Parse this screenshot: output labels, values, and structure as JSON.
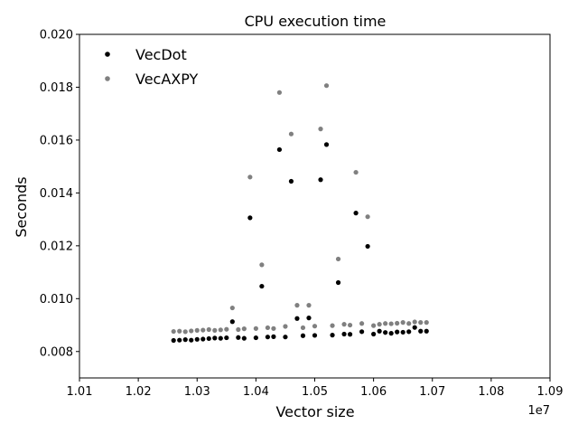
{
  "chart_data": {
    "type": "scatter",
    "title": "CPU execution time",
    "xlabel": "Vector size",
    "ylabel": "Seconds",
    "x_offset_label": "1e7",
    "xlim": [
      1.01,
      1.09
    ],
    "ylim": [
      0.007,
      0.02
    ],
    "xticks": [
      1.01,
      1.02,
      1.03,
      1.04,
      1.05,
      1.06,
      1.07,
      1.08,
      1.09
    ],
    "xtick_labels": [
      "1.01",
      "1.02",
      "1.03",
      "1.04",
      "1.05",
      "1.06",
      "1.07",
      "1.08",
      "1.09"
    ],
    "yticks": [
      0.008,
      0.01,
      0.012,
      0.014,
      0.016,
      0.018,
      0.02
    ],
    "ytick_labels": [
      "0.008",
      "0.010",
      "0.012",
      "0.014",
      "0.016",
      "0.018",
      "0.020"
    ],
    "legend_position": "top-left",
    "grid": false,
    "series": [
      {
        "name": "VecDot",
        "color": "#000000",
        "points": [
          [
            1.026,
            0.00842
          ],
          [
            1.027,
            0.00843
          ],
          [
            1.028,
            0.00845
          ],
          [
            1.029,
            0.00843
          ],
          [
            1.03,
            0.00846
          ],
          [
            1.031,
            0.00847
          ],
          [
            1.032,
            0.00849
          ],
          [
            1.033,
            0.00851
          ],
          [
            1.034,
            0.0085
          ],
          [
            1.035,
            0.00852
          ],
          [
            1.036,
            0.00913
          ],
          [
            1.037,
            0.00853
          ],
          [
            1.038,
            0.0085
          ],
          [
            1.039,
            0.01306
          ],
          [
            1.04,
            0.00852
          ],
          [
            1.041,
            0.01047
          ],
          [
            1.042,
            0.00855
          ],
          [
            1.043,
            0.00856
          ],
          [
            1.044,
            0.01564
          ],
          [
            1.045,
            0.00855
          ],
          [
            1.046,
            0.01444
          ],
          [
            1.047,
            0.00925
          ],
          [
            1.048,
            0.0086
          ],
          [
            1.049,
            0.00927
          ],
          [
            1.05,
            0.00861
          ],
          [
            1.051,
            0.0145
          ],
          [
            1.052,
            0.01583
          ],
          [
            1.053,
            0.00862
          ],
          [
            1.054,
            0.01061
          ],
          [
            1.055,
            0.00866
          ],
          [
            1.056,
            0.00865
          ],
          [
            1.057,
            0.01324
          ],
          [
            1.058,
            0.00875
          ],
          [
            1.059,
            0.01198
          ],
          [
            1.06,
            0.00866
          ],
          [
            1.061,
            0.00877
          ],
          [
            1.062,
            0.00872
          ],
          [
            1.063,
            0.00869
          ],
          [
            1.064,
            0.00874
          ],
          [
            1.065,
            0.00873
          ],
          [
            1.066,
            0.00875
          ],
          [
            1.067,
            0.00891
          ],
          [
            1.068,
            0.00877
          ],
          [
            1.069,
            0.00877
          ]
        ]
      },
      {
        "name": "VecAXPY",
        "color": "#808080",
        "points": [
          [
            1.026,
            0.00876
          ],
          [
            1.027,
            0.00877
          ],
          [
            1.028,
            0.00875
          ],
          [
            1.029,
            0.00878
          ],
          [
            1.03,
            0.0088
          ],
          [
            1.031,
            0.00881
          ],
          [
            1.032,
            0.00883
          ],
          [
            1.033,
            0.0088
          ],
          [
            1.034,
            0.00882
          ],
          [
            1.035,
            0.00884
          ],
          [
            1.036,
            0.00965
          ],
          [
            1.037,
            0.00883
          ],
          [
            1.038,
            0.00886
          ],
          [
            1.039,
            0.0146
          ],
          [
            1.04,
            0.00887
          ],
          [
            1.041,
            0.01128
          ],
          [
            1.042,
            0.0089
          ],
          [
            1.043,
            0.00887
          ],
          [
            1.044,
            0.0178
          ],
          [
            1.045,
            0.00895
          ],
          [
            1.046,
            0.01623
          ],
          [
            1.047,
            0.00975
          ],
          [
            1.048,
            0.0089
          ],
          [
            1.049,
            0.00975
          ],
          [
            1.05,
            0.00896
          ],
          [
            1.051,
            0.01642
          ],
          [
            1.052,
            0.01806
          ],
          [
            1.053,
            0.00898
          ],
          [
            1.054,
            0.0115
          ],
          [
            1.055,
            0.00903
          ],
          [
            1.056,
            0.009
          ],
          [
            1.057,
            0.01478
          ],
          [
            1.058,
            0.00906
          ],
          [
            1.059,
            0.0131
          ],
          [
            1.06,
            0.00898
          ],
          [
            1.061,
            0.00903
          ],
          [
            1.062,
            0.00906
          ],
          [
            1.063,
            0.00905
          ],
          [
            1.064,
            0.00907
          ],
          [
            1.065,
            0.0091
          ],
          [
            1.066,
            0.00906
          ],
          [
            1.067,
            0.00912
          ],
          [
            1.068,
            0.0091
          ],
          [
            1.069,
            0.0091
          ]
        ]
      }
    ]
  }
}
